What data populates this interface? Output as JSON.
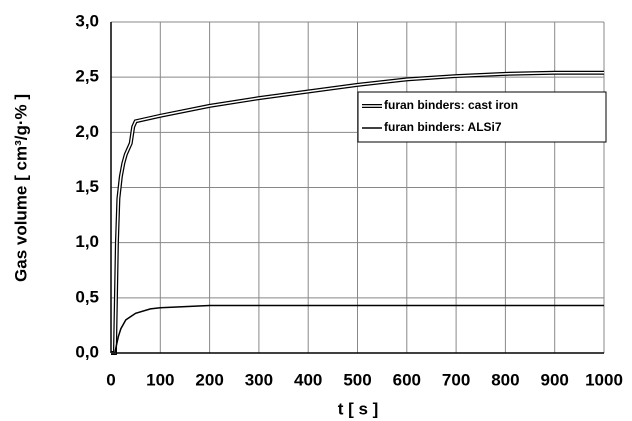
{
  "chart_data": {
    "type": "line",
    "x_label": "t [ s ]",
    "y_label": "Gas  volume  [ cm³/g·% ]",
    "xlim": [
      0,
      1000
    ],
    "xticks": [
      0,
      100,
      200,
      300,
      400,
      500,
      600,
      700,
      800,
      900,
      1000
    ],
    "ylim": [
      0,
      3
    ],
    "yticks": [
      {
        "value": 0,
        "label": "0,0"
      },
      {
        "value": 0.5,
        "label": "0,5"
      },
      {
        "value": 1,
        "label": "1,0"
      },
      {
        "value": 1.5,
        "label": "1,5"
      },
      {
        "value": 2,
        "label": "2,0"
      },
      {
        "value": 2.5,
        "label": "2,5"
      },
      {
        "value": 3,
        "label": "3,0"
      }
    ],
    "grid": true,
    "legend": "upper right",
    "series": [
      {
        "name": "furan binders: cast iron",
        "color": "#000000",
        "style": "double",
        "x": [
          0,
          8,
          10,
          12,
          15,
          20,
          25,
          30,
          40,
          45,
          50,
          100,
          200,
          300,
          400,
          500,
          600,
          700,
          800,
          900,
          1000
        ],
        "values": [
          0,
          0,
          0.5,
          1.0,
          1.4,
          1.6,
          1.72,
          1.8,
          1.9,
          2.05,
          2.1,
          2.15,
          2.24,
          2.31,
          2.37,
          2.43,
          2.48,
          2.51,
          2.53,
          2.54,
          2.54
        ]
      },
      {
        "name": "furan binders: ALSi7",
        "color": "#000000",
        "style": "single",
        "x": [
          0,
          8,
          10,
          15,
          20,
          30,
          50,
          80,
          100,
          150,
          200,
          300,
          400,
          500,
          600,
          700,
          800,
          900,
          1000
        ],
        "values": [
          0,
          0,
          0.05,
          0.15,
          0.22,
          0.3,
          0.36,
          0.4,
          0.41,
          0.42,
          0.43,
          0.43,
          0.43,
          0.43,
          0.43,
          0.43,
          0.43,
          0.43,
          0.43
        ]
      }
    ]
  }
}
